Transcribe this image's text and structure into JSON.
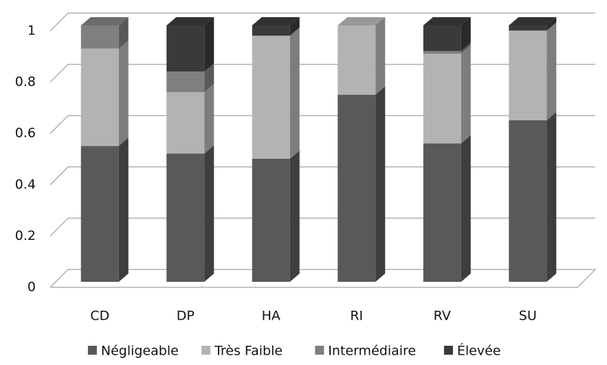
{
  "chart_data": {
    "type": "bar",
    "stacked": true,
    "three_d": true,
    "categories": [
      "CD",
      "DP",
      "HA",
      "RI",
      "RV",
      "SU"
    ],
    "series": [
      {
        "name": "Négligeable",
        "color": "#595959",
        "values": [
          0.53,
          0.5,
          0.48,
          0.73,
          0.54,
          0.63
        ]
      },
      {
        "name": "Très Faible",
        "color": "#b3b3b3",
        "values": [
          0.38,
          0.24,
          0.48,
          0.27,
          0.35,
          0.35
        ]
      },
      {
        "name": "Intermédiaire",
        "color": "#7f7f7f",
        "values": [
          0.09,
          0.08,
          0,
          0,
          0.01,
          0
        ]
      },
      {
        "name": "Élevée",
        "color": "#3a3a3a",
        "values": [
          0,
          0.18,
          0.04,
          0,
          0.1,
          0.02
        ]
      }
    ],
    "ylim": [
      0,
      1
    ],
    "yticks": [
      0,
      0.2,
      0.4,
      0.6,
      0.8,
      1
    ],
    "grid": true,
    "legend": "bottom"
  }
}
